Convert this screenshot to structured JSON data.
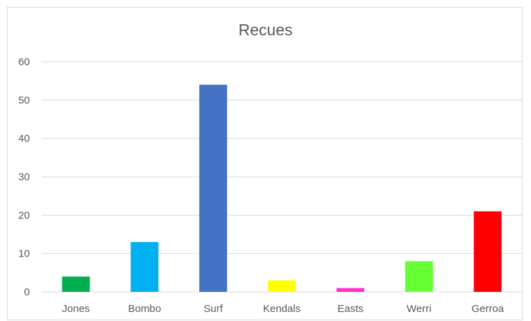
{
  "chart_data": {
    "type": "bar",
    "title": "Recues",
    "xlabel": "",
    "ylabel": "",
    "categories": [
      "Jones",
      "Bombo",
      "Surf",
      "Kendals",
      "Easts",
      "Werri",
      "Gerroa"
    ],
    "values": [
      4,
      13,
      54,
      3,
      1,
      8,
      21
    ],
    "colors": [
      "#00b050",
      "#00b0f0",
      "#4472c4",
      "#ffff00",
      "#ff33cc",
      "#66ff33",
      "#ff0000"
    ],
    "ylim": [
      0,
      60
    ],
    "yticks": [
      "0",
      "10",
      "20",
      "30",
      "40",
      "50",
      "60"
    ],
    "grid": true,
    "gridline_color": "#d9d9d9",
    "legend": "none"
  }
}
